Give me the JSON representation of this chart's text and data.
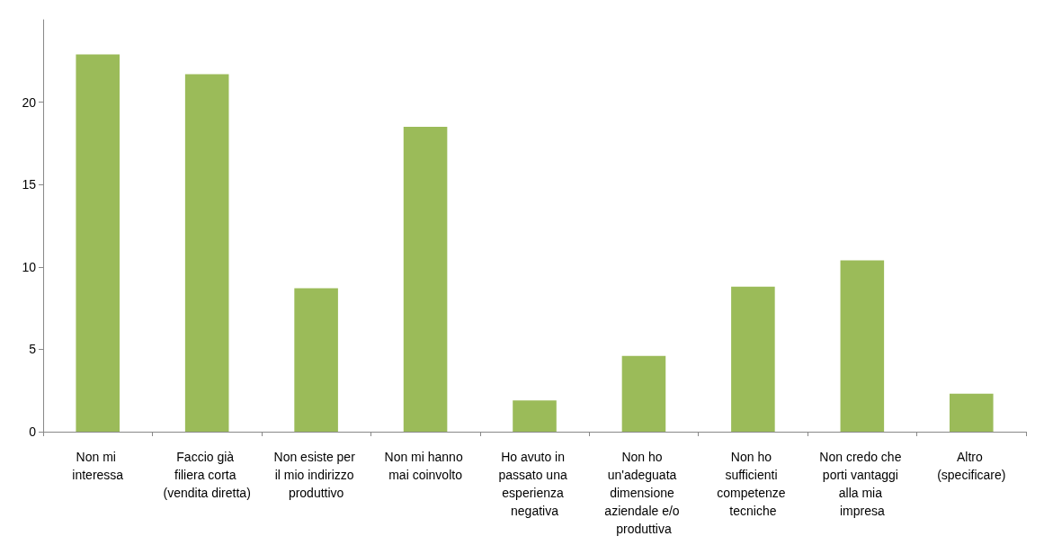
{
  "chart_data": {
    "type": "bar",
    "categories": [
      "Non mi interessa",
      "Faccio già filiera corta (vendita diretta)",
      "Non esiste per il mio indirizzo produttivo",
      "Non mi hanno mai coinvolto",
      "Ho avuto in passato una esperienza negativa",
      "Non ho un'adeguata dimensione aziendale e/o produttiva",
      "Non ho sufficienti competenze tecniche",
      "Non credo che porti vantaggi alla mia impresa",
      "Altro (specificare)"
    ],
    "values": [
      22.9,
      21.7,
      8.7,
      18.5,
      1.9,
      4.6,
      8.8,
      10.4,
      2.3
    ],
    "color": "#9bbb59",
    "ylim": [
      0,
      25
    ],
    "yticks": [
      0,
      5,
      10,
      15,
      20
    ],
    "grid": false
  }
}
